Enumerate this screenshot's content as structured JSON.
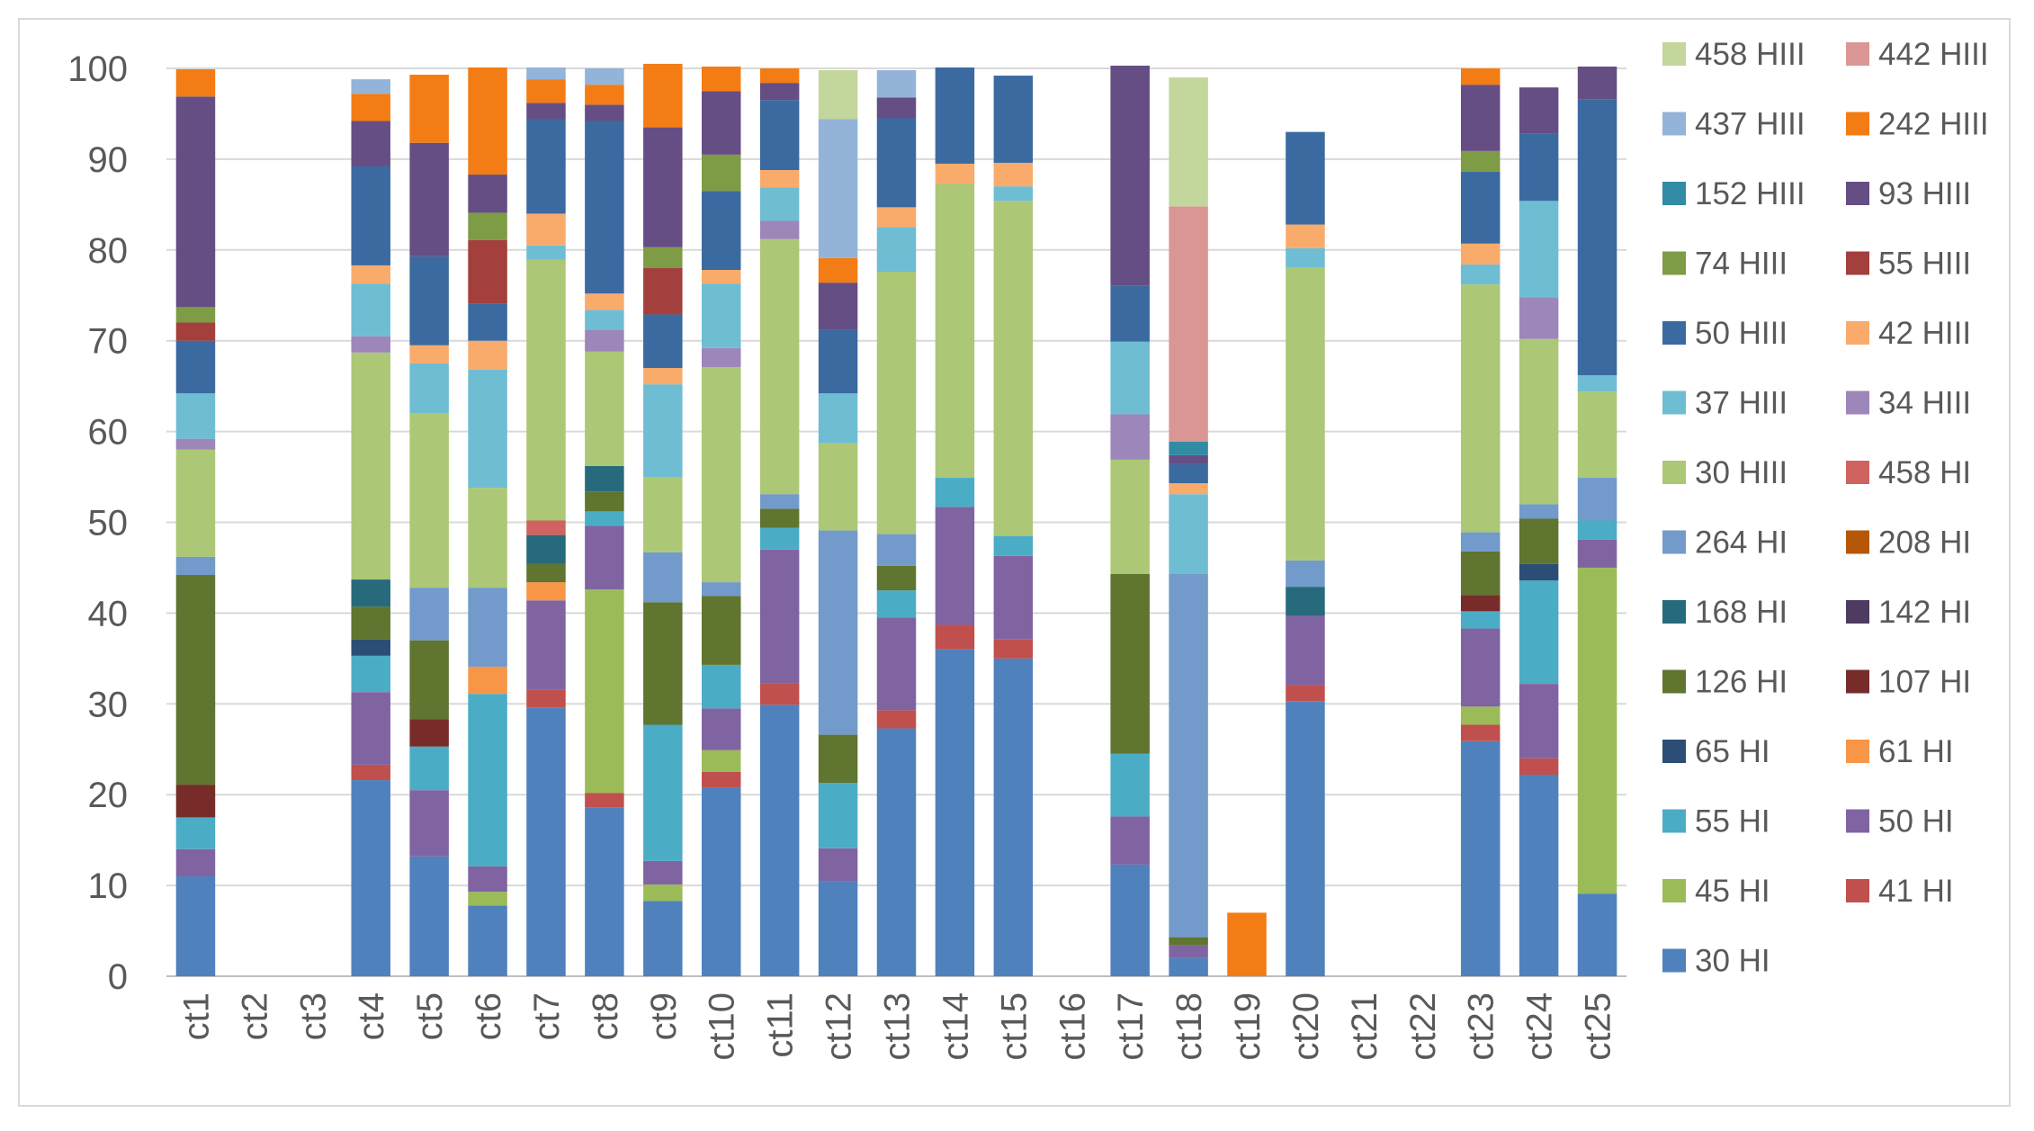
{
  "chart_data": {
    "type": "bar",
    "stacked": true,
    "title": "",
    "xlabel": "",
    "ylabel": "",
    "ylim": [
      0,
      100
    ],
    "yticks": [
      0,
      10,
      20,
      30,
      40,
      50,
      60,
      70,
      80,
      90,
      100
    ],
    "grid": true,
    "legend_position": "right",
    "categories": [
      "ct1",
      "ct2",
      "ct3",
      "ct4",
      "ct5",
      "ct6",
      "ct7",
      "ct8",
      "ct9",
      "ct10",
      "ct11",
      "ct12",
      "ct13",
      "ct14",
      "ct15",
      "ct16",
      "ct17",
      "ct18",
      "ct19",
      "ct20",
      "ct21",
      "ct22",
      "ct23",
      "ct24",
      "ct25"
    ],
    "series": [
      {
        "name": "30 HI",
        "color": "#4f81bd",
        "values": [
          11,
          0,
          0,
          21.6,
          13.2,
          7.8,
          29.6,
          18.6,
          8.3,
          20.8,
          29.9,
          10.5,
          27.3,
          36,
          35,
          0,
          12.3,
          2,
          0,
          30.3,
          0,
          0,
          25.9,
          22.2,
          9.1
        ]
      },
      {
        "name": "41 HI",
        "color": "#c0504d",
        "values": [
          0,
          0,
          0,
          1.7,
          0,
          0,
          2,
          1.6,
          0,
          1.7,
          2.4,
          0,
          2,
          2.7,
          2.1,
          0,
          0,
          0,
          0,
          1.8,
          0,
          0,
          1.8,
          1.8,
          0
        ]
      },
      {
        "name": "45 HI",
        "color": "#9bbb59",
        "values": [
          0,
          0,
          0,
          0,
          0,
          1.5,
          0,
          22.4,
          1.8,
          2.4,
          0,
          0,
          0,
          0,
          0,
          0,
          0,
          0,
          0,
          0,
          0,
          0,
          2,
          0,
          35.9
        ]
      },
      {
        "name": "50 HI",
        "color": "#8064a2",
        "values": [
          3,
          0,
          0,
          8,
          7.3,
          2.8,
          9.8,
          7,
          2.6,
          4.6,
          14.7,
          3.6,
          10.2,
          13,
          9.2,
          0,
          5.3,
          1.4,
          0,
          7.6,
          0,
          0,
          8.6,
          8.2,
          3.1
        ]
      },
      {
        "name": "55 HI",
        "color": "#4bacc6",
        "values": [
          3.5,
          0,
          0,
          4,
          4.8,
          19,
          0,
          1.6,
          15,
          4.8,
          2.4,
          7.2,
          3,
          3.2,
          2.2,
          0,
          6.9,
          0,
          0,
          0,
          0,
          0,
          1.9,
          11.4,
          2.1
        ]
      },
      {
        "name": "61 HI",
        "color": "#f79646",
        "values": [
          0,
          0,
          0,
          0,
          0,
          3,
          2,
          0,
          0,
          0,
          0,
          0,
          0,
          0,
          0,
          0,
          0,
          0,
          0,
          0,
          0,
          0,
          0,
          0,
          0
        ]
      },
      {
        "name": "65 HI",
        "color": "#2c4d75",
        "values": [
          0,
          0,
          0,
          1.8,
          0,
          0,
          0,
          0,
          0,
          0,
          0,
          0,
          0,
          0,
          0,
          0,
          0,
          0,
          0,
          0,
          0,
          0,
          0,
          1.8,
          0
        ]
      },
      {
        "name": "107 HI",
        "color": "#772c2a",
        "values": [
          3.6,
          0,
          0,
          0,
          3,
          0,
          0,
          0,
          0,
          0,
          0,
          0,
          0,
          0,
          0,
          0,
          0,
          0,
          0,
          0,
          0,
          0,
          1.8,
          0,
          0
        ]
      },
      {
        "name": "126 HI",
        "color": "#5f7530",
        "values": [
          23.1,
          0,
          0,
          3.6,
          8.7,
          0,
          2,
          2.2,
          13.5,
          7.6,
          2.1,
          5.3,
          2.7,
          0,
          0,
          0,
          19.8,
          0.9,
          0,
          0,
          0,
          0,
          4.8,
          5,
          0
        ]
      },
      {
        "name": "142 HI",
        "color": "#4d3b62",
        "values": [
          0,
          0,
          0,
          0,
          0,
          0,
          0,
          0,
          0,
          0,
          0,
          0,
          0,
          0,
          0,
          0,
          0,
          0,
          0,
          0,
          0,
          0,
          0,
          0,
          0
        ]
      },
      {
        "name": "168 HI",
        "color": "#276a7c",
        "values": [
          0,
          0,
          0,
          3,
          0,
          0,
          3.2,
          2.8,
          0,
          0,
          0,
          0,
          0,
          0,
          0,
          0,
          0,
          0,
          0,
          3.2,
          0,
          0,
          0,
          0,
          0
        ]
      },
      {
        "name": "208 HI",
        "color": "#b65708",
        "values": [
          0,
          0,
          0,
          0,
          0,
          0,
          0,
          0,
          0,
          0,
          0,
          0,
          0,
          0,
          0,
          0,
          0,
          0,
          0,
          0,
          0,
          0,
          0,
          0,
          0
        ]
      },
      {
        "name": "264 HI",
        "color": "#729aca",
        "values": [
          2,
          0,
          0,
          0,
          5.8,
          8.7,
          0,
          0,
          5.5,
          1.5,
          1.6,
          22.5,
          3.5,
          0,
          0,
          0,
          0,
          40,
          0,
          2.9,
          0,
          0,
          2.1,
          1.6,
          4.7
        ]
      },
      {
        "name": "458 HI",
        "color": "#d0625f",
        "values": [
          0,
          0,
          0,
          0,
          0,
          0,
          1.6,
          0,
          0,
          0,
          0,
          0,
          0,
          0,
          0,
          0,
          0,
          0,
          0,
          0,
          0,
          0,
          0,
          0,
          0
        ]
      },
      {
        "name": "30 HIII",
        "color": "#acc775",
        "values": [
          11.8,
          0,
          0,
          25,
          19.2,
          11,
          28.7,
          12.6,
          8.3,
          23.7,
          28.1,
          9.6,
          28.9,
          32.4,
          36.9,
          0,
          12.6,
          0,
          0,
          32.3,
          0,
          0,
          27.3,
          18.2,
          9.5
        ]
      },
      {
        "name": "34 HIII",
        "color": "#9d86b9",
        "values": [
          1.2,
          0,
          0,
          1.8,
          0,
          0,
          0,
          2.4,
          0,
          2.1,
          2,
          0,
          0,
          0,
          0,
          0,
          5,
          0,
          0,
          0,
          0,
          0,
          0,
          4.6,
          0
        ]
      },
      {
        "name": "37 HIII",
        "color": "#6fbdd3",
        "values": [
          5,
          0,
          0,
          5.8,
          5.5,
          13,
          1.6,
          2.2,
          10.2,
          7.1,
          3.7,
          5.5,
          4.9,
          0,
          1.6,
          0,
          8,
          8.8,
          0,
          2.1,
          0,
          0,
          2.2,
          10.6,
          1.8
        ]
      },
      {
        "name": "42 HIII",
        "color": "#f9ab6b",
        "values": [
          0,
          0,
          0,
          2,
          2,
          3.2,
          3.5,
          1.8,
          1.8,
          1.5,
          1.9,
          0,
          2.2,
          2.2,
          2.6,
          0,
          0,
          1.2,
          0,
          2.6,
          0,
          0,
          2.3,
          0,
          0
        ]
      },
      {
        "name": "50 HIII",
        "color": "#3b6aa0",
        "values": [
          5.8,
          0,
          0,
          10.9,
          9.8,
          4.1,
          10.4,
          19,
          5.9,
          8.7,
          7.7,
          7,
          9.8,
          10.6,
          9.6,
          0,
          6.2,
          2.1,
          0,
          10.2,
          0,
          0,
          7.9,
          7.4,
          30.4
        ]
      },
      {
        "name": "55 HIII",
        "color": "#a33f3c",
        "values": [
          2,
          0,
          0,
          0,
          0,
          7,
          0,
          0,
          5.1,
          0,
          0,
          0,
          0,
          0,
          0,
          0,
          0,
          0,
          0,
          0,
          0,
          0,
          0,
          0,
          0
        ]
      },
      {
        "name": "74 HIII",
        "color": "#7e9b45",
        "values": [
          1.7,
          0,
          0,
          0,
          0,
          3,
          0,
          0,
          2.3,
          4,
          0,
          0,
          0,
          0,
          0,
          0,
          0,
          0,
          0,
          0,
          0,
          0,
          2.3,
          0,
          0
        ]
      },
      {
        "name": "93 HIII",
        "color": "#654e83",
        "values": [
          23.2,
          0,
          0,
          5,
          12.5,
          4.2,
          1.8,
          1.8,
          13.2,
          7,
          1.9,
          5.2,
          2.3,
          0,
          0,
          0,
          24.2,
          1,
          0,
          0,
          0,
          0,
          7.3,
          5.1,
          3.6
        ]
      },
      {
        "name": "152 HIII",
        "color": "#318ba4",
        "values": [
          0,
          0,
          0,
          0,
          0,
          0,
          0,
          0,
          0,
          0,
          0,
          0,
          0,
          0,
          0,
          0,
          0,
          1.5,
          0,
          0,
          0,
          0,
          0,
          0,
          0
        ]
      },
      {
        "name": "242 HIII",
        "color": "#f37c14",
        "values": [
          3,
          0,
          0,
          3,
          7.5,
          11.8,
          2.6,
          2.2,
          7,
          2.7,
          1.6,
          2.7,
          0,
          0,
          0,
          0,
          0,
          0,
          7,
          0,
          0,
          0,
          1.8,
          0,
          0
        ]
      },
      {
        "name": "437 HIII",
        "color": "#94b3d8",
        "values": [
          0,
          0,
          0,
          1.6,
          0,
          0,
          1.3,
          1.8,
          0,
          0,
          0,
          15.3,
          3,
          0,
          0,
          0,
          0,
          0,
          0,
          0,
          0,
          0,
          0,
          0,
          0
        ]
      },
      {
        "name": "442 HIII",
        "color": "#da9694",
        "values": [
          0,
          0,
          0,
          0,
          0,
          0,
          0,
          0,
          0,
          0,
          0,
          0,
          0,
          0,
          0,
          0,
          0,
          25.9,
          0,
          0,
          0,
          0,
          0,
          0,
          0
        ]
      },
      {
        "name": "458 HIII",
        "color": "#c3d69b",
        "values": [
          0,
          0,
          0,
          0,
          0,
          0,
          0,
          0,
          0,
          0,
          0,
          5.4,
          0,
          0,
          0,
          0,
          0,
          14.2,
          0,
          0,
          0,
          0,
          0,
          0,
          0
        ]
      }
    ],
    "legend_order": [
      "458 HIII",
      "442 HIII",
      "437 HIII",
      "242 HIII",
      "152 HIII",
      "93 HIII",
      "74 HIII",
      "55 HIII",
      "50 HIII",
      "42 HIII",
      "37 HIII",
      "34 HIII",
      "30 HIII",
      "458 HI",
      "264 HI",
      "208 HI",
      "168 HI",
      "142 HI",
      "126 HI",
      "107 HI",
      "65 HI",
      "61 HI",
      "55 HI",
      "50 HI",
      "45 HI",
      "41 HI",
      "30 HI"
    ]
  }
}
